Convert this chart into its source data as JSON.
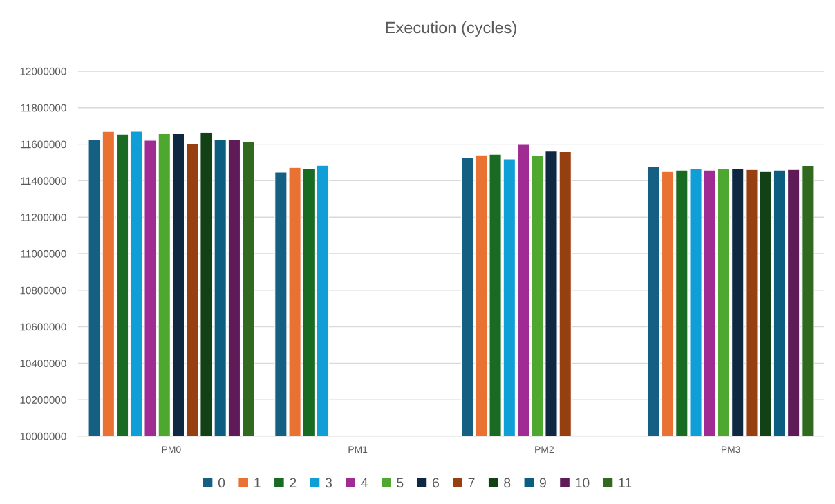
{
  "chart_data": {
    "type": "bar",
    "title": "Execution (cycles)",
    "categories": [
      "PM0",
      "PM1",
      "PM2",
      "PM3"
    ],
    "series": [
      {
        "name": "0",
        "color": "#156082",
        "values": [
          11627000,
          11447000,
          11526000,
          11476000
        ]
      },
      {
        "name": "1",
        "color": "#e97132",
        "values": [
          11670000,
          11473000,
          11541000,
          11450000
        ]
      },
      {
        "name": "2",
        "color": "#196b24",
        "values": [
          11655000,
          11465000,
          11545000,
          11458000
        ]
      },
      {
        "name": "3",
        "color": "#0f9ed5",
        "values": [
          11671000,
          11484000,
          11519000,
          11465000
        ]
      },
      {
        "name": "4",
        "color": "#a02b93",
        "values": [
          11621000,
          null,
          11599000,
          11458000
        ]
      },
      {
        "name": "5",
        "color": "#4ea72e",
        "values": [
          11657000,
          null,
          11537000,
          11465000
        ]
      },
      {
        "name": "6",
        "color": "#0e2841",
        "values": [
          11657000,
          null,
          11562000,
          11465000
        ]
      },
      {
        "name": "7",
        "color": "#964011",
        "values": [
          11604000,
          null,
          11559000,
          11461000
        ]
      },
      {
        "name": "8",
        "color": "#124116",
        "values": [
          11664000,
          null,
          null,
          11450000
        ]
      },
      {
        "name": "9",
        "color": "#0b5e80",
        "values": [
          11627000,
          null,
          null,
          11458000
        ]
      },
      {
        "name": "10",
        "color": "#5f1b57",
        "values": [
          11625000,
          null,
          null,
          11461000
        ]
      },
      {
        "name": "11",
        "color": "#316a1f",
        "values": [
          11614000,
          null,
          null,
          11483000
        ]
      }
    ],
    "ylim": [
      10000000,
      12000000
    ],
    "yticks": [
      10000000,
      10200000,
      10400000,
      10600000,
      10800000,
      11000000,
      11200000,
      11400000,
      11600000,
      11800000,
      12000000
    ],
    "grid": "y",
    "legend": "bottom"
  }
}
